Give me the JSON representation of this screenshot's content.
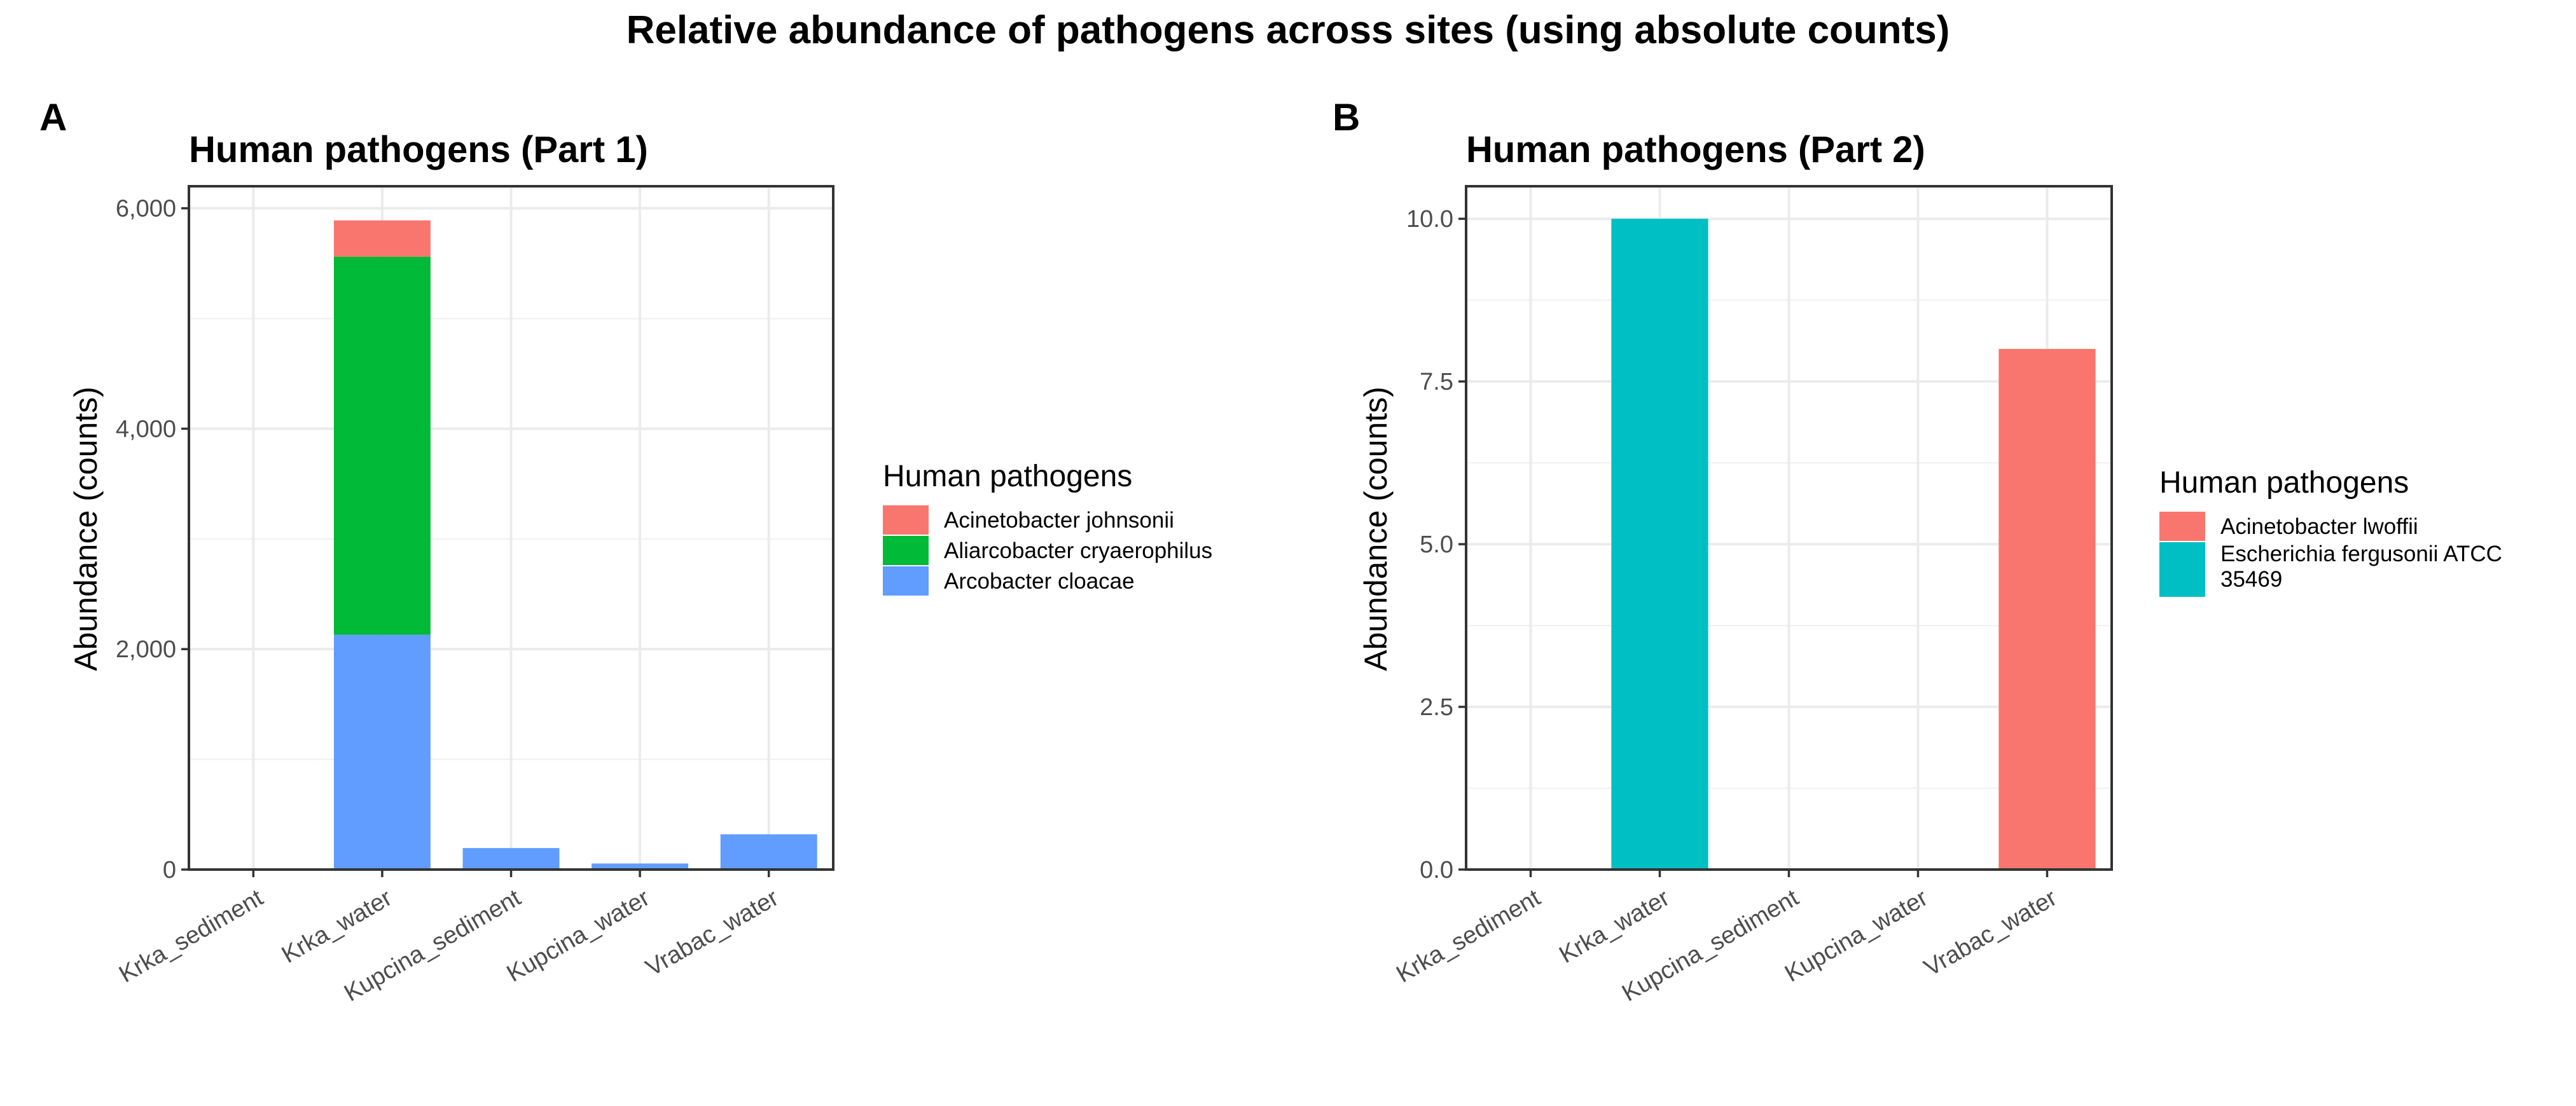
{
  "figure_title": "Relative abundance of pathogens across sites (using absolute counts)",
  "chart_data": [
    {
      "type": "bar",
      "stacked": true,
      "panel_label": "A",
      "title": "Human pathogens (Part 1)",
      "xlabel": "",
      "ylabel": "Abundance (counts)",
      "categories": [
        "Krka_sediment",
        "Krka_water",
        "Kupcina_sediment",
        "Kupcina_water",
        "Vrabac_water"
      ],
      "ylim": [
        0,
        6200
      ],
      "yticks": [
        0,
        2000,
        4000,
        6000
      ],
      "ytick_labels": [
        "0",
        "2,000",
        "4,000",
        "6,000"
      ],
      "grid": true,
      "legend": {
        "title": "Human pathogens",
        "placement": "right"
      },
      "series": [
        {
          "name": "Arcobacter cloacae",
          "color": "#619CFF",
          "values": [
            0,
            2130,
            195,
            55,
            320
          ]
        },
        {
          "name": "Aliarcobacter cryaerophilus",
          "color": "#00BA38",
          "values": [
            0,
            3430,
            0,
            0,
            0
          ]
        },
        {
          "name": "Acinetobacter johnsonii",
          "color": "#F8766D",
          "values": [
            0,
            330,
            0,
            0,
            0
          ]
        }
      ],
      "legend_order": [
        "Acinetobacter johnsonii",
        "Aliarcobacter cryaerophilus",
        "Arcobacter cloacae"
      ]
    },
    {
      "type": "bar",
      "stacked": true,
      "panel_label": "B",
      "title": "Human pathogens (Part 2)",
      "xlabel": "",
      "ylabel": "Abundance (counts)",
      "categories": [
        "Krka_sediment",
        "Krka_water",
        "Kupcina_sediment",
        "Kupcina_water",
        "Vrabac_water"
      ],
      "ylim": [
        0,
        10.5
      ],
      "yticks": [
        0,
        2.5,
        5,
        7.5,
        10
      ],
      "ytick_labels": [
        "0.0",
        "2.5",
        "5.0",
        "7.5",
        "10.0"
      ],
      "grid": true,
      "legend": {
        "title": "Human pathogens",
        "placement": "right"
      },
      "series": [
        {
          "name": "Escherichia fergusonii ATCC 35469",
          "color": "#00BFC4",
          "values": [
            0,
            10,
            0,
            0,
            0
          ]
        },
        {
          "name": "Acinetobacter lwoffii",
          "color": "#F8766D",
          "values": [
            0,
            0,
            0,
            0,
            8
          ]
        }
      ],
      "legend_order": [
        "Acinetobacter lwoffii",
        "Escherichia fergusonii ATCC 35469"
      ]
    }
  ]
}
